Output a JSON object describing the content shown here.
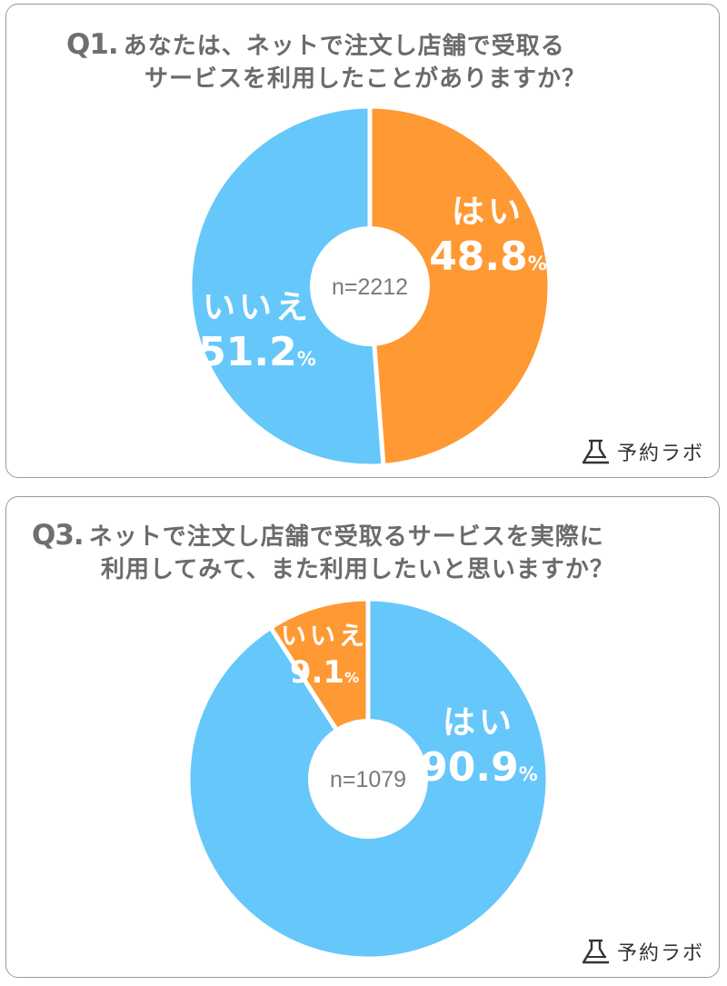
{
  "colors": {
    "orange": "#FF9933",
    "blue": "#66C7FA",
    "gray_text": "#6b6b6b",
    "white": "#ffffff"
  },
  "logo": {
    "text": "予約ラボ",
    "icon": "flask-icon"
  },
  "chart_data": [
    {
      "type": "pie",
      "question_no": "Q1.",
      "title_line1": "あなたは、ネットで注文し店舗で受取る",
      "title_line2": "サービスを利用したことがありますか？",
      "n_label": "n=2212",
      "slices": [
        {
          "label": "はい",
          "value": 48.8,
          "value_text": "48.8",
          "unit": "%",
          "color": "#FF9933"
        },
        {
          "label": "いいえ",
          "value": 51.2,
          "value_text": "51.2",
          "unit": "%",
          "color": "#66C7FA"
        }
      ]
    },
    {
      "type": "pie",
      "question_no": "Q3.",
      "title_line1": "ネットで注文し店舗で受取るサービスを実際に",
      "title_line2": "利用してみて、また利用したいと思いますか？",
      "n_label": "n=1079",
      "slices": [
        {
          "label": "はい",
          "value": 90.9,
          "value_text": "90.9",
          "unit": "%",
          "color": "#66C7FA"
        },
        {
          "label": "いいえ",
          "value": 9.1,
          "value_text": "9.1",
          "unit": "%",
          "color": "#FF9933"
        }
      ]
    }
  ]
}
